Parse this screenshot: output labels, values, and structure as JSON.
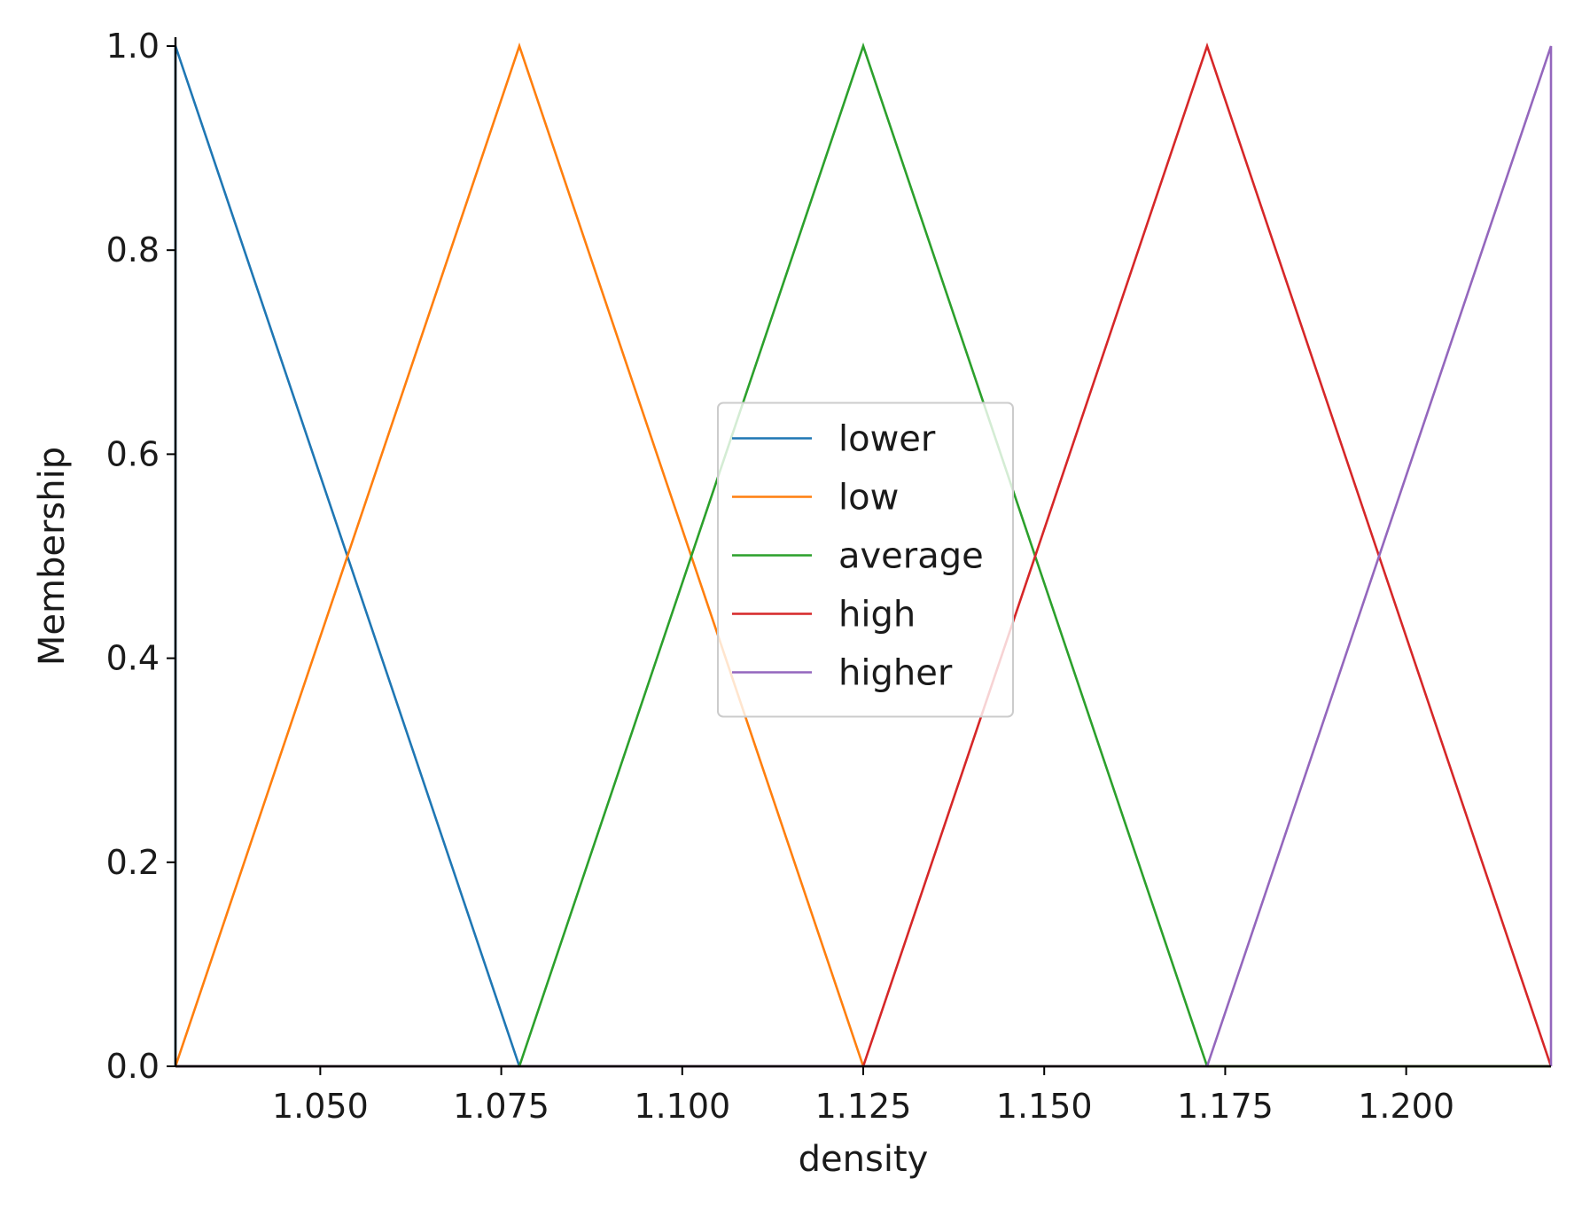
{
  "chart_data": {
    "type": "line",
    "xlabel": "density",
    "ylabel": "Membership",
    "xlim": [
      1.03,
      1.22
    ],
    "ylim": [
      0.0,
      1.0
    ],
    "xticks": [
      1.05,
      1.075,
      1.1,
      1.125,
      1.15,
      1.175,
      1.2
    ],
    "xtick_labels": [
      "1.050",
      "1.075",
      "1.100",
      "1.125",
      "1.150",
      "1.175",
      "1.200"
    ],
    "yticks": [
      0.0,
      0.2,
      0.4,
      0.6,
      0.8,
      1.0
    ],
    "ytick_labels": [
      "0.0",
      "0.2",
      "0.4",
      "0.6",
      "0.8",
      "1.0"
    ],
    "grid": false,
    "legend_position": "center",
    "series": [
      {
        "name": "lower",
        "color": "#1f77b4",
        "x": [
          1.03,
          1.03,
          1.0775,
          1.22
        ],
        "y": [
          0,
          1,
          0,
          0
        ]
      },
      {
        "name": "low",
        "color": "#ff7f0e",
        "x": [
          1.03,
          1.0775,
          1.125,
          1.22
        ],
        "y": [
          0,
          1,
          0,
          0
        ]
      },
      {
        "name": "average",
        "color": "#2ca02c",
        "x": [
          1.03,
          1.0775,
          1.125,
          1.1725,
          1.22
        ],
        "y": [
          0,
          0,
          1,
          0,
          0
        ]
      },
      {
        "name": "high",
        "color": "#d62728",
        "x": [
          1.03,
          1.125,
          1.1725,
          1.22
        ],
        "y": [
          0,
          0,
          1,
          0
        ]
      },
      {
        "name": "higher",
        "color": "#9467bd",
        "x": [
          1.03,
          1.1725,
          1.22,
          1.22
        ],
        "y": [
          0,
          0,
          1,
          0
        ]
      }
    ]
  }
}
